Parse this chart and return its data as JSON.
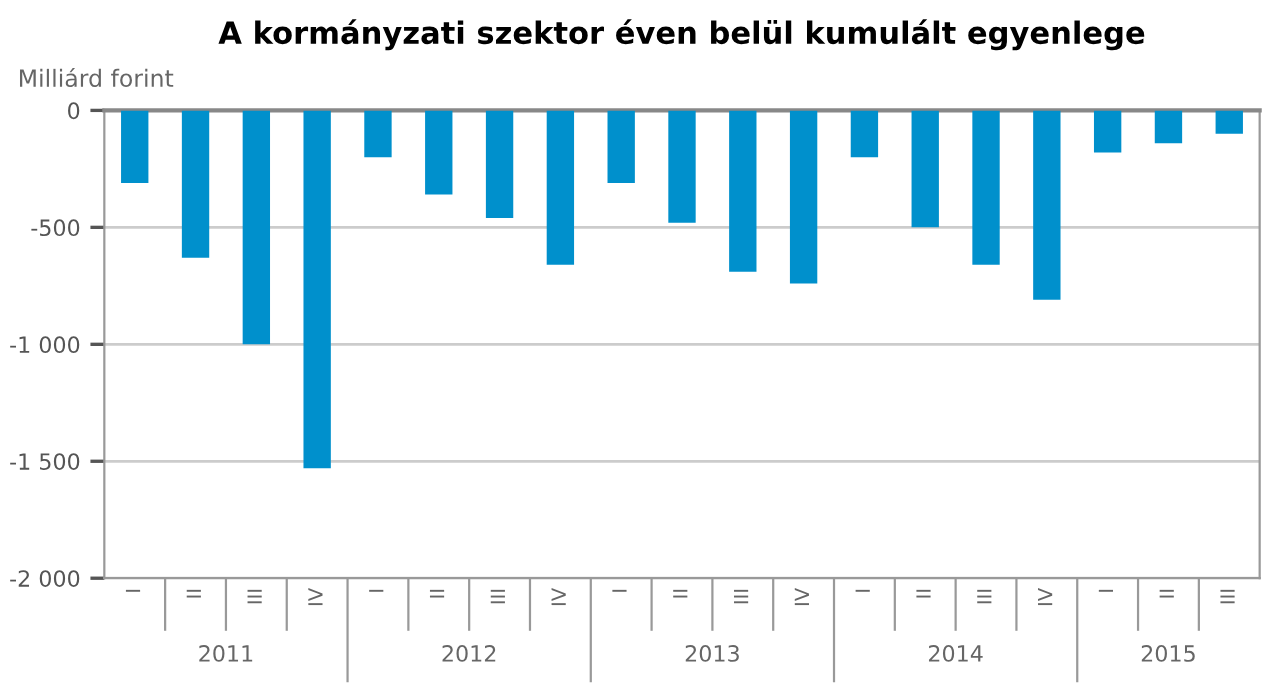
{
  "chart_data": {
    "type": "bar",
    "title": "A kormányzati szektor éven belül kumulált egyenlege",
    "ylabel": "Milliárd forint",
    "categories": [
      "I",
      "II",
      "III",
      "IV",
      "I",
      "II",
      "III",
      "IV",
      "I",
      "II",
      "III",
      "IV",
      "I",
      "II",
      "III",
      "IV",
      "I",
      "II",
      "III"
    ],
    "values": [
      -310,
      -630,
      -1000,
      -1530,
      -200,
      -360,
      -460,
      -660,
      -310,
      -480,
      -690,
      -740,
      -200,
      -500,
      -660,
      -810,
      -180,
      -140,
      -100
    ],
    "color": "#0090cc",
    "annotations": [
      "2011",
      "2012",
      "2013",
      "2014",
      "2015"
    ],
    "ylim": [
      -2000,
      0
    ],
    "yticks": [
      {
        "value": -2000,
        "label": "-2 000"
      },
      {
        "value": -1500,
        "label": "-1 500"
      },
      {
        "value": -1000,
        "label": "-1 000"
      },
      -500,
      0
    ],
    "grid": "y"
  }
}
